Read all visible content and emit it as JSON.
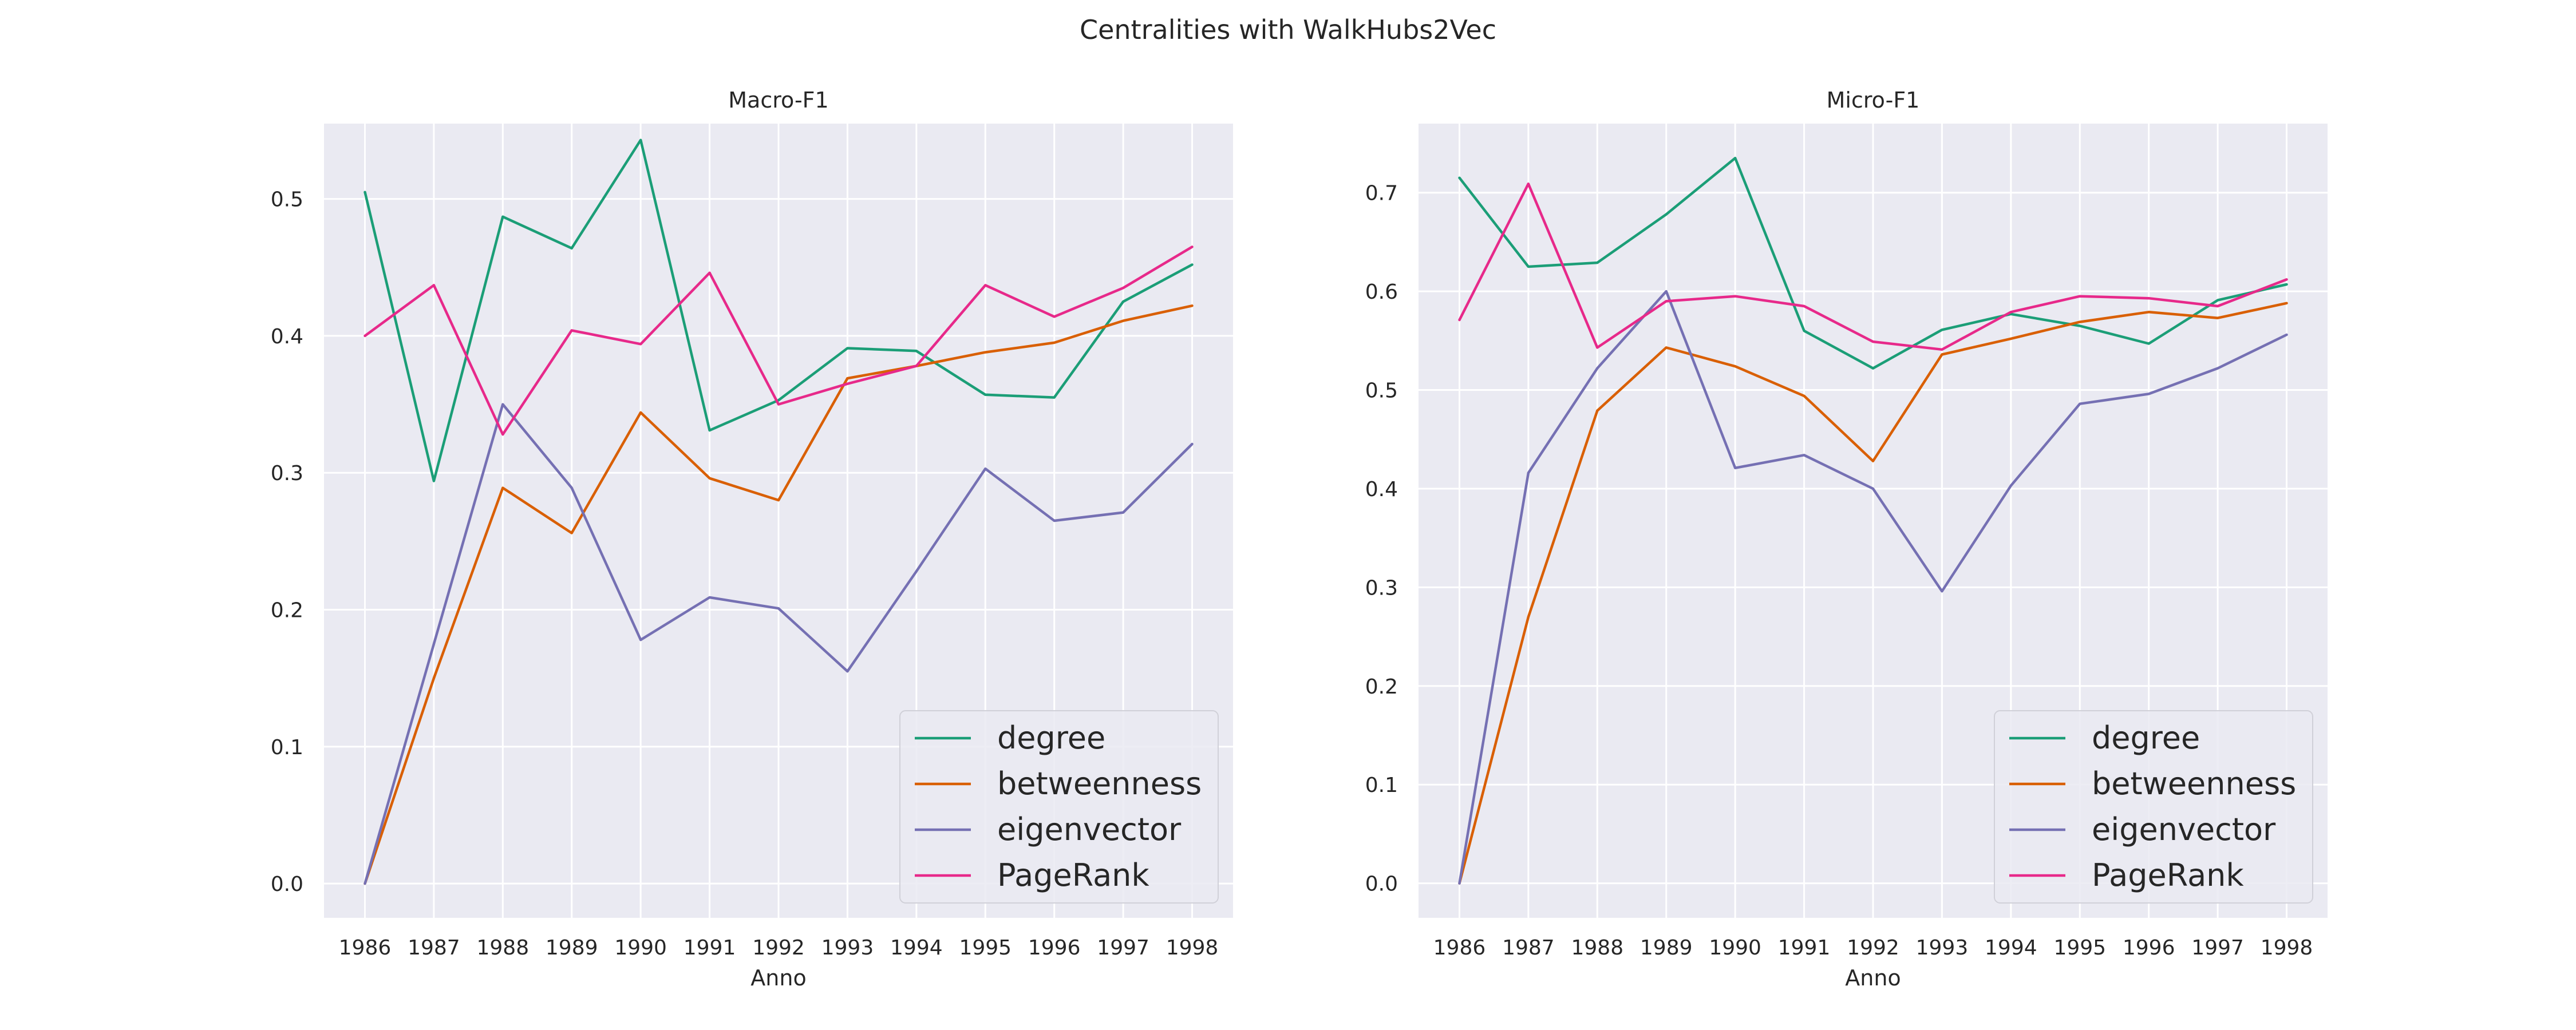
{
  "figure": {
    "title": "Centralities with WalkHubs2Vec"
  },
  "chart_data": [
    {
      "type": "line",
      "title": "Macro-F1",
      "xlabel": "Anno",
      "ylabel": "",
      "x": [
        1986,
        1987,
        1988,
        1989,
        1990,
        1991,
        1992,
        1993,
        1994,
        1995,
        1996,
        1997,
        1998
      ],
      "ylim": [
        -0.025,
        0.555
      ],
      "yticks": [
        0.0,
        0.1,
        0.2,
        0.3,
        0.4,
        0.5
      ],
      "yticklabels": [
        "0.0",
        "0.1",
        "0.2",
        "0.3",
        "0.4",
        "0.5"
      ],
      "grid": true,
      "legend": "lower-right",
      "series": [
        {
          "name": "degree",
          "color": "#1b9e77",
          "values": [
            0.505,
            0.294,
            0.487,
            0.464,
            0.543,
            0.331,
            0.353,
            0.391,
            0.389,
            0.357,
            0.355,
            0.425,
            0.452
          ]
        },
        {
          "name": "betweenness",
          "color": "#d95f02",
          "values": [
            0.0,
            0.15,
            0.289,
            0.256,
            0.344,
            0.296,
            0.28,
            0.369,
            0.378,
            0.388,
            0.395,
            0.411,
            0.422
          ]
        },
        {
          "name": "eigenvector",
          "color": "#7570b3",
          "values": [
            0.0,
            0.175,
            0.35,
            0.289,
            0.178,
            0.209,
            0.201,
            0.155,
            0.228,
            0.303,
            0.265,
            0.271,
            0.321
          ]
        },
        {
          "name": "PageRank",
          "color": "#e7298a",
          "values": [
            0.4,
            0.437,
            0.328,
            0.404,
            0.394,
            0.446,
            0.35,
            0.365,
            0.378,
            0.437,
            0.414,
            0.435,
            0.465
          ]
        }
      ]
    },
    {
      "type": "line",
      "title": "Micro-F1",
      "xlabel": "Anno",
      "ylabel": "",
      "x": [
        1986,
        1987,
        1988,
        1989,
        1990,
        1991,
        1992,
        1993,
        1994,
        1995,
        1996,
        1997,
        1998
      ],
      "ylim": [
        -0.035,
        0.77
      ],
      "yticks": [
        0.0,
        0.1,
        0.2,
        0.3,
        0.4,
        0.5,
        0.6,
        0.7
      ],
      "yticklabels": [
        "0.0",
        "0.1",
        "0.2",
        "0.3",
        "0.4",
        "0.5",
        "0.6",
        "0.7"
      ],
      "grid": true,
      "legend": "lower-right",
      "series": [
        {
          "name": "degree",
          "color": "#1b9e77",
          "values": [
            0.715,
            0.625,
            0.629,
            0.678,
            0.735,
            0.56,
            0.522,
            0.561,
            0.577,
            0.565,
            0.547,
            0.591,
            0.607
          ]
        },
        {
          "name": "betweenness",
          "color": "#d95f02",
          "values": [
            0.0,
            0.27,
            0.479,
            0.543,
            0.524,
            0.494,
            0.428,
            0.536,
            0.552,
            0.569,
            0.579,
            0.573,
            0.588
          ]
        },
        {
          "name": "eigenvector",
          "color": "#7570b3",
          "values": [
            0.0,
            0.416,
            0.522,
            0.6,
            0.421,
            0.434,
            0.4,
            0.296,
            0.403,
            0.486,
            0.496,
            0.522,
            0.556
          ]
        },
        {
          "name": "PageRank",
          "color": "#e7298a",
          "values": [
            0.571,
            0.709,
            0.543,
            0.59,
            0.595,
            0.585,
            0.549,
            0.541,
            0.579,
            0.595,
            0.593,
            0.585,
            0.612
          ]
        }
      ]
    }
  ]
}
